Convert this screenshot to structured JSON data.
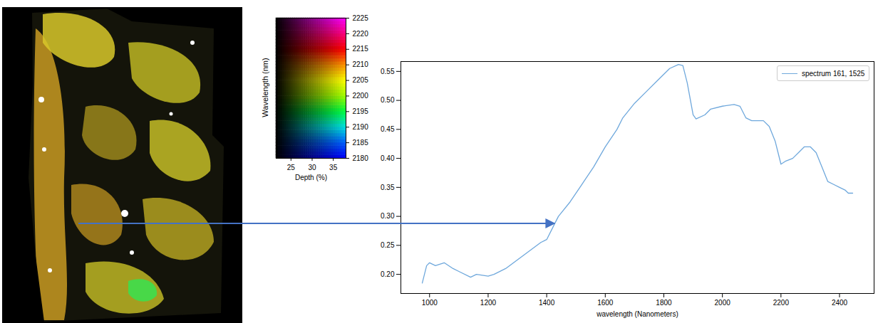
{
  "chart_data": [
    {
      "type": "line",
      "xlabel": "wavelength (Nanometers)",
      "x": [
        975,
        990,
        1000,
        1020,
        1050,
        1080,
        1100,
        1140,
        1160,
        1200,
        1220,
        1260,
        1300,
        1340,
        1380,
        1400,
        1420,
        1440,
        1480,
        1520,
        1560,
        1600,
        1640,
        1660,
        1700,
        1740,
        1780,
        1820,
        1850,
        1865,
        1880,
        1900,
        1910,
        1940,
        1960,
        2000,
        2040,
        2060,
        2080,
        2100,
        2140,
        2160,
        2180,
        2200,
        2215,
        2240,
        2260,
        2280,
        2300,
        2320,
        2340,
        2360,
        2380,
        2400,
        2420,
        2430,
        2445
      ],
      "series": [
        {
          "name": "spectrum 161, 1525",
          "color": "#6fa8dc",
          "values": [
            0.185,
            0.215,
            0.22,
            0.215,
            0.22,
            0.21,
            0.205,
            0.195,
            0.2,
            0.197,
            0.2,
            0.21,
            0.225,
            0.24,
            0.255,
            0.26,
            0.28,
            0.3,
            0.325,
            0.355,
            0.385,
            0.42,
            0.45,
            0.47,
            0.495,
            0.515,
            0.535,
            0.555,
            0.562,
            0.56,
            0.53,
            0.475,
            0.468,
            0.475,
            0.485,
            0.49,
            0.493,
            0.49,
            0.47,
            0.465,
            0.465,
            0.455,
            0.43,
            0.39,
            0.395,
            0.4,
            0.41,
            0.42,
            0.42,
            0.41,
            0.385,
            0.36,
            0.355,
            0.35,
            0.345,
            0.34,
            0.34
          ]
        }
      ],
      "xlim": [
        902,
        2518
      ],
      "ylim": [
        0.167,
        0.567
      ],
      "xticks": [
        1000,
        1200,
        1400,
        1600,
        1800,
        2000,
        2200,
        2400
      ],
      "yticks": [
        {
          "value": 0.2,
          "label": "0.20"
        },
        0.25,
        {
          "value": 0.3,
          "label": "0.30"
        },
        0.35,
        {
          "value": 0.4,
          "label": "0.40"
        },
        0.45,
        {
          "value": 0.5,
          "label": "0.50"
        },
        0.55
      ],
      "legend": "upper right"
    },
    {
      "type": "heatmap",
      "xlabel": "Depth (%)",
      "ylabel": "Wavelength (nm)",
      "xlim": [
        21.5,
        38
      ],
      "ylim": [
        2180,
        2225
      ],
      "xticks": [
        25,
        30,
        35
      ],
      "yticks": [
        2180,
        2185,
        2190,
        2195,
        2200,
        2205,
        2210,
        2215,
        2220,
        2225
      ],
      "colors": [
        "#0000ff",
        "#0060ff",
        "#00e0e0",
        "#00ff40",
        "#a0ff00",
        "#ffff00",
        "#ff9000",
        "#ff0000",
        "#ff0080",
        "#ff00ff"
      ]
    }
  ]
}
